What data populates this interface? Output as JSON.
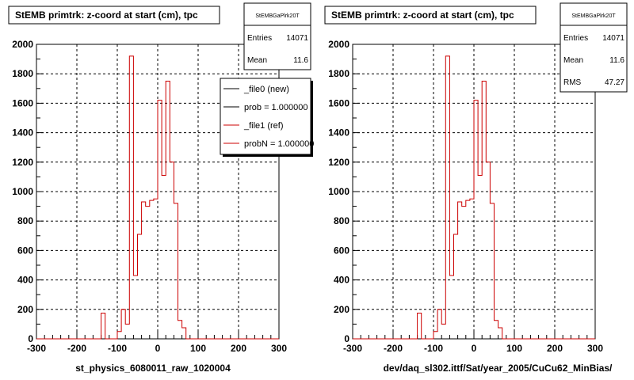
{
  "chart_data": [
    {
      "type": "histogram",
      "title": "StEMB primtrk: z-coord at start (cm), tpc",
      "xlabel": "st_physics_6080011_raw_1020004",
      "xlim": [
        -300,
        300
      ],
      "ylim": [
        0,
        2000
      ],
      "xticks": [
        "-300",
        "-200",
        "-100",
        "0",
        "100",
        "200",
        "300"
      ],
      "yticks": [
        "0",
        "200",
        "400",
        "600",
        "800",
        "1000",
        "1200",
        "1400",
        "1600",
        "1800",
        "2000"
      ],
      "grid": true,
      "bin_width": 10,
      "series": [
        {
          "name": "_file1 (ref)",
          "color": "#cc0000",
          "x_start": -300,
          "values": [
            0,
            0,
            0,
            0,
            0,
            0,
            0,
            0,
            0,
            0,
            0,
            0,
            0,
            0,
            0,
            0,
            175,
            0,
            0,
            0,
            50,
            200,
            100,
            1920,
            430,
            710,
            930,
            900,
            940,
            950,
            1620,
            1110,
            1750,
            1200,
            920,
            125,
            75,
            0,
            0,
            0,
            0,
            0,
            0,
            0,
            0,
            0,
            0,
            0,
            0,
            0,
            0,
            0,
            0,
            0,
            0,
            0,
            0,
            0,
            0,
            0
          ]
        }
      ],
      "stats": {
        "name": "StEMBGaPlrk20T",
        "entries_label": "Entries",
        "entries": "14071",
        "mean_label": "Mean",
        "mean": "11.6"
      },
      "legend": [
        "_file0 (new)",
        "prob = 1.000000",
        "_file1 (ref)",
        "probN = 1.000000"
      ]
    },
    {
      "type": "histogram",
      "title": "StEMB primtrk: z-coord at start (cm), tpc",
      "xlabel": "dev/daq_sl302.ittf/Sat/year_2005/CuCu62_MinBias/",
      "xlim": [
        -300,
        300
      ],
      "ylim": [
        0,
        2000
      ],
      "xticks": [
        "-300",
        "-200",
        "-100",
        "0",
        "100",
        "200",
        "300"
      ],
      "yticks": [
        "0",
        "200",
        "400",
        "600",
        "800",
        "1000",
        "1200",
        "1400",
        "1600",
        "1800",
        "2000"
      ],
      "grid": true,
      "bin_width": 10,
      "series": [
        {
          "name": "",
          "color": "#cc0000",
          "x_start": -300,
          "values": [
            0,
            0,
            0,
            0,
            0,
            0,
            0,
            0,
            0,
            0,
            0,
            0,
            0,
            0,
            0,
            0,
            175,
            0,
            0,
            0,
            50,
            200,
            100,
            1920,
            430,
            710,
            930,
            900,
            940,
            950,
            1620,
            1110,
            1750,
            1200,
            920,
            125,
            75,
            0,
            0,
            0,
            0,
            0,
            0,
            0,
            0,
            0,
            0,
            0,
            0,
            0,
            0,
            0,
            0,
            0,
            0,
            0,
            0,
            0,
            0,
            0
          ]
        }
      ],
      "stats": {
        "name": "StEMBGaPlrk20T",
        "entries_label": "Entries",
        "entries": "14071",
        "mean_label": "Mean",
        "mean": "11.6",
        "rms_label": "RMS",
        "rms": "47.27"
      }
    }
  ]
}
